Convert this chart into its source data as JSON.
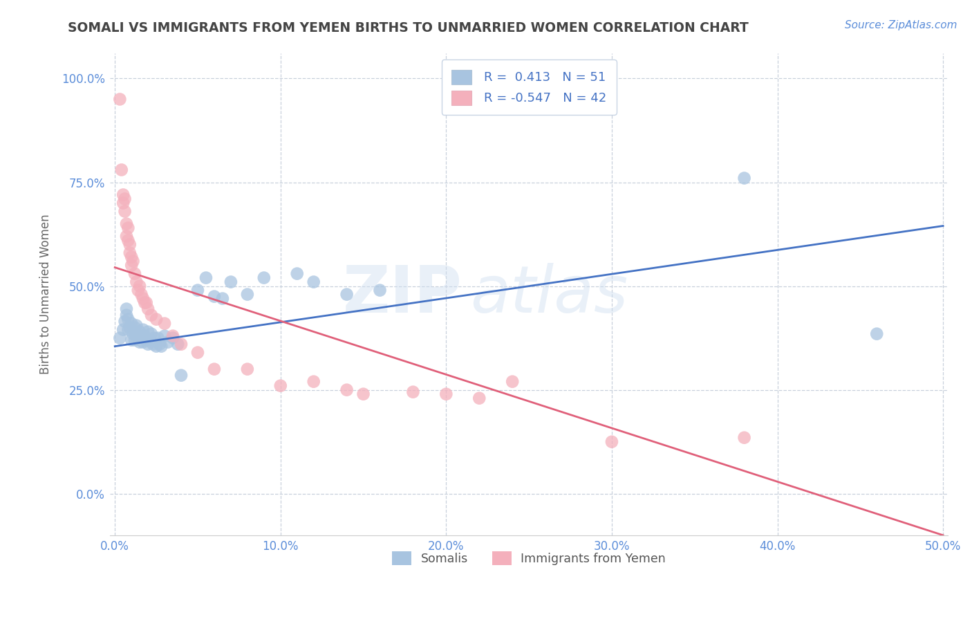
{
  "title": "SOMALI VS IMMIGRANTS FROM YEMEN BIRTHS TO UNMARRIED WOMEN CORRELATION CHART",
  "source": "Source: ZipAtlas.com",
  "ylabel": "Births to Unmarried Women",
  "watermark": "ZIPatlas",
  "xlim": [
    -0.003,
    0.503
  ],
  "ylim": [
    -0.1,
    1.06
  ],
  "xticks": [
    0.0,
    0.1,
    0.2,
    0.3,
    0.4,
    0.5
  ],
  "xticklabels": [
    "0.0%",
    "10.0%",
    "20.0%",
    "30.0%",
    "40.0%",
    "50.0%"
  ],
  "yticks": [
    0.0,
    0.25,
    0.5,
    0.75,
    1.0
  ],
  "yticklabels": [
    "0.0%",
    "25.0%",
    "50.0%",
    "75.0%",
    "100.0%"
  ],
  "somali_R": 0.413,
  "somali_N": 51,
  "yemen_R": -0.547,
  "yemen_N": 42,
  "somali_color": "#a8c4e0",
  "somali_line_color": "#4472c4",
  "yemen_color": "#f4b0bc",
  "yemen_line_color": "#e0607a",
  "legend_text_color": "#4472c4",
  "title_color": "#444444",
  "grid_color": "#c8d0dc",
  "somali_x": [
    0.003,
    0.005,
    0.006,
    0.007,
    0.007,
    0.008,
    0.008,
    0.009,
    0.01,
    0.01,
    0.011,
    0.012,
    0.012,
    0.013,
    0.013,
    0.014,
    0.015,
    0.015,
    0.016,
    0.017,
    0.017,
    0.018,
    0.019,
    0.02,
    0.02,
    0.021,
    0.022,
    0.023,
    0.024,
    0.025,
    0.026,
    0.027,
    0.028,
    0.03,
    0.032,
    0.035,
    0.038,
    0.04,
    0.05,
    0.055,
    0.06,
    0.065,
    0.07,
    0.08,
    0.09,
    0.11,
    0.12,
    0.14,
    0.16,
    0.38,
    0.46
  ],
  "somali_y": [
    0.375,
    0.395,
    0.415,
    0.43,
    0.445,
    0.395,
    0.42,
    0.4,
    0.37,
    0.41,
    0.385,
    0.37,
    0.4,
    0.38,
    0.405,
    0.38,
    0.365,
    0.39,
    0.38,
    0.365,
    0.395,
    0.38,
    0.37,
    0.36,
    0.39,
    0.37,
    0.385,
    0.36,
    0.375,
    0.355,
    0.375,
    0.36,
    0.355,
    0.38,
    0.365,
    0.375,
    0.36,
    0.285,
    0.49,
    0.52,
    0.475,
    0.47,
    0.51,
    0.48,
    0.52,
    0.53,
    0.51,
    0.48,
    0.49,
    0.76,
    0.385
  ],
  "yemen_x": [
    0.003,
    0.004,
    0.005,
    0.005,
    0.006,
    0.006,
    0.007,
    0.007,
    0.008,
    0.008,
    0.009,
    0.009,
    0.01,
    0.01,
    0.011,
    0.012,
    0.013,
    0.014,
    0.015,
    0.016,
    0.017,
    0.018,
    0.019,
    0.02,
    0.022,
    0.025,
    0.03,
    0.035,
    0.04,
    0.05,
    0.06,
    0.08,
    0.1,
    0.12,
    0.14,
    0.15,
    0.18,
    0.2,
    0.22,
    0.24,
    0.3,
    0.38
  ],
  "yemen_y": [
    0.95,
    0.78,
    0.72,
    0.7,
    0.71,
    0.68,
    0.65,
    0.62,
    0.64,
    0.61,
    0.6,
    0.58,
    0.57,
    0.55,
    0.56,
    0.53,
    0.51,
    0.49,
    0.5,
    0.48,
    0.47,
    0.46,
    0.46,
    0.445,
    0.43,
    0.42,
    0.41,
    0.38,
    0.36,
    0.34,
    0.3,
    0.3,
    0.26,
    0.27,
    0.25,
    0.24,
    0.245,
    0.24,
    0.23,
    0.27,
    0.125,
    0.135
  ],
  "somali_line_x": [
    0.0,
    0.5
  ],
  "somali_line_y": [
    0.355,
    0.645
  ],
  "yemen_line_x": [
    0.0,
    0.5
  ],
  "yemen_line_y": [
    0.545,
    -0.1
  ],
  "background_color": "#ffffff"
}
